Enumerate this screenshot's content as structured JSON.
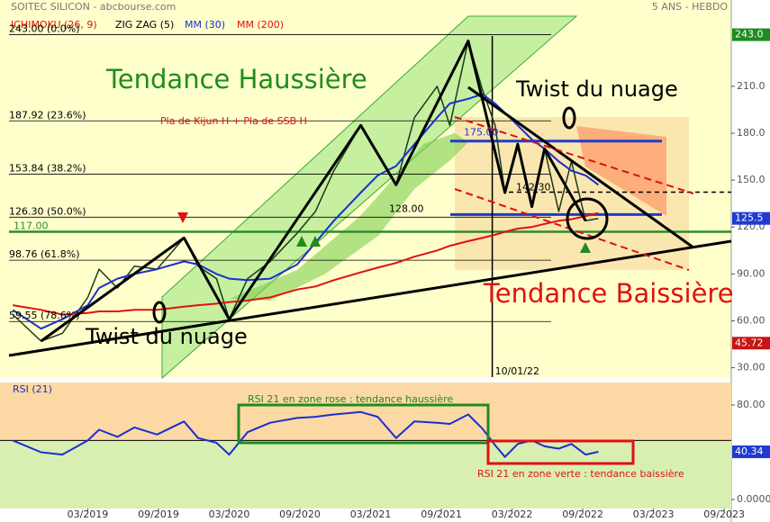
{
  "header": {
    "title": "SOITEC SILICON - abcbourse.com",
    "period": "5 ANS - HEBDO"
  },
  "chart_data": [
    {
      "type": "line",
      "ichimoku_label": "ICHIMOKU (26, 9)",
      "x": [
        2018.64,
        2018.84,
        2018.99,
        2019.17,
        2019.25,
        2019.38,
        2019.5,
        2019.66,
        2019.85,
        2019.95,
        2020.08,
        2020.17,
        2020.3,
        2020.46,
        2020.65,
        2020.78,
        2020.91,
        2021.1,
        2021.22,
        2021.35,
        2021.48,
        2021.64,
        2021.73,
        2021.86,
        2021.96,
        2022.05,
        2022.12,
        2022.21,
        2022.31,
        2022.4,
        2022.5,
        2022.59,
        2022.69,
        2022.78
      ],
      "series": [
        {
          "color": "#1a3a1a",
          "values": [
            64,
            47,
            52,
            75,
            93,
            81,
            95,
            93,
            113,
            95,
            87,
            61,
            87,
            98,
            116,
            130,
            156,
            185,
            167,
            147,
            190,
            210,
            185,
            239,
            208,
            185,
            142,
            173,
            133,
            170,
            130,
            162,
            124,
            125.5
          ]
        },
        {
          "name": "MM (30)",
          "color": "#1a2fd0",
          "values": [
            67,
            55,
            61,
            70,
            81,
            87,
            90,
            93,
            98,
            96,
            90,
            87,
            86,
            87,
            96,
            110,
            124,
            142,
            153,
            159,
            173,
            190,
            199,
            202,
            205,
            199,
            193,
            185,
            176,
            170,
            162,
            156,
            153,
            147
          ]
        },
        {
          "name": "MM (200)",
          "color": "#e01010",
          "values": [
            70,
            67,
            64,
            65,
            66,
            66,
            67,
            67,
            69,
            70,
            71,
            72,
            73,
            75,
            80,
            82,
            86,
            91,
            94,
            97,
            101,
            105,
            108,
            111,
            113,
            115,
            117,
            119,
            120,
            122,
            124,
            125,
            127,
            129
          ]
        },
        {
          "name": "ZIG ZAG (5)",
          "color": "#000000",
          "x": [
            2018.84,
            2019.85,
            2020.17,
            2021.1,
            2021.35,
            2021.86,
            2022.12,
            2022.21,
            2022.31,
            2022.4,
            2022.69
          ],
          "values": [
            47,
            113,
            61,
            185,
            147,
            239,
            142,
            173,
            133,
            170,
            124
          ]
        }
      ],
      "xlim": [
        2018.613,
        2023.72
      ],
      "ylim": [
        24,
        256
      ],
      "yticks": [
        {
          "value": 210,
          "label": "210.0"
        },
        {
          "value": 180,
          "label": "180.0"
        },
        {
          "value": 150,
          "label": "150.0"
        },
        {
          "value": 120,
          "label": "120.0"
        },
        {
          "value": 90,
          "label": "90.00"
        },
        {
          "value": 60,
          "label": "60.00"
        },
        {
          "value": 30,
          "label": "30.00"
        }
      ],
      "value_markers": [
        {
          "value": 243,
          "label": "243.0",
          "color": "#1e8c1e"
        },
        {
          "value": 125.5,
          "color": "#1f3bd1"
        },
        {
          "value": 45.72,
          "color": "#c81414"
        }
      ],
      "levels": [
        {
          "value": 243,
          "label": "243.00  (0.0%)"
        },
        {
          "value": 187.92,
          "label": "187.92  (23.6%)"
        },
        {
          "value": 153.84,
          "label": "153.84  (38.2%)"
        },
        {
          "value": 126.3,
          "label": "126.30  (50.0%)"
        },
        {
          "value": 98.76,
          "label": "98.76  (61.8%)"
        },
        {
          "value": 59.55,
          "label": "59.55  (78.6%)"
        }
      ],
      "hlines": [
        {
          "value": 117,
          "label": "117.00",
          "color": "#2e8b2e"
        },
        {
          "value": 128,
          "label": "128.00",
          "color": "#1f3bd1"
        },
        {
          "value": 175,
          "label": "175.00",
          "color": "#1f3bd1"
        },
        {
          "value": 142.3,
          "label": "142.30",
          "color": "#000000"
        }
      ],
      "vline": {
        "value": 2022.03,
        "label": "10/01/22"
      },
      "annotations": [
        "Tendance Haussière",
        "Twist du nuage",
        "Twist du nuage",
        "Tendance Baissière",
        "Pla de Kijun H + Pla de SSB H"
      ]
    },
    {
      "type": "line",
      "x": [
        2018.64,
        2018.84,
        2018.99,
        2019.17,
        2019.25,
        2019.38,
        2019.5,
        2019.66,
        2019.85,
        2019.95,
        2020.08,
        2020.17,
        2020.3,
        2020.46,
        2020.65,
        2020.78,
        2020.91,
        2021.1,
        2021.22,
        2021.35,
        2021.48,
        2021.64,
        2021.73,
        2021.86,
        2021.96,
        2022.05,
        2022.12,
        2022.21,
        2022.31,
        2022.4,
        2022.5,
        2022.59,
        2022.69,
        2022.78
      ],
      "series": [
        {
          "name": "RSI (21)",
          "color": "#1a2fd0",
          "values": [
            50,
            40,
            38,
            50,
            59,
            53,
            61,
            55,
            66,
            52,
            48,
            38,
            57,
            65,
            69,
            70,
            72,
            74,
            70,
            52,
            66,
            65,
            64,
            72,
            60,
            46,
            36,
            47,
            50,
            45,
            43,
            47,
            38,
            40.34
          ]
        }
      ],
      "xlim": [
        2018.613,
        2023.72
      ],
      "ylim": [
        -7.6,
        99
      ],
      "yticks": [
        {
          "value": 80,
          "label": "80.00"
        },
        {
          "value": 0,
          "label": "0.0000"
        }
      ],
      "value_markers": [
        {
          "value": 40.34,
          "color": "#1f3bd1"
        }
      ],
      "zone_split": 50,
      "zone_colors": [
        "#fcd9a4",
        "#d9efb2"
      ],
      "xticks": [
        {
          "value": 2019.17,
          "label": "03/2019"
        },
        {
          "value": 2019.67,
          "label": "09/2019"
        },
        {
          "value": 2020.17,
          "label": "03/2020"
        },
        {
          "value": 2020.67,
          "label": "09/2020"
        },
        {
          "value": 2021.17,
          "label": "03/2021"
        },
        {
          "value": 2021.67,
          "label": "09/2021"
        },
        {
          "value": 2022.17,
          "label": "03/2022"
        },
        {
          "value": 2022.67,
          "label": "09/2022"
        },
        {
          "value": 2023.17,
          "label": "03/2023"
        },
        {
          "value": 2023.67,
          "label": "09/2023"
        }
      ],
      "annotations": [
        "RSI 21 en zone rose  : tendance haussière",
        "RSI 21 en zone verte : tendance baissière"
      ]
    }
  ]
}
